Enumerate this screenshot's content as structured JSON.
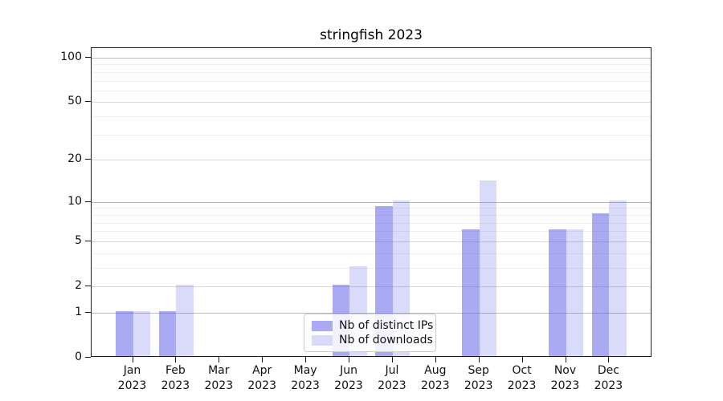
{
  "chart_data": {
    "type": "bar",
    "title": "stringfish 2023",
    "categories": [
      {
        "month": "Jan",
        "year": "2023"
      },
      {
        "month": "Feb",
        "year": "2023"
      },
      {
        "month": "Mar",
        "year": "2023"
      },
      {
        "month": "Apr",
        "year": "2023"
      },
      {
        "month": "May",
        "year": "2023"
      },
      {
        "month": "Jun",
        "year": "2023"
      },
      {
        "month": "Jul",
        "year": "2023"
      },
      {
        "month": "Aug",
        "year": "2023"
      },
      {
        "month": "Sep",
        "year": "2023"
      },
      {
        "month": "Oct",
        "year": "2023"
      },
      {
        "month": "Nov",
        "year": "2023"
      },
      {
        "month": "Dec",
        "year": "2023"
      }
    ],
    "series": [
      {
        "name": "Nb of distinct IPs",
        "color": "rgba(85,85,230,0.50)",
        "values": [
          1,
          1,
          0,
          0,
          0,
          2,
          9,
          0,
          6,
          0,
          6,
          8
        ]
      },
      {
        "name": "Nb of downloads",
        "color": "rgba(85,85,230,0.22)",
        "values": [
          1,
          2,
          0,
          0,
          0,
          3,
          10,
          0,
          14,
          0,
          6,
          10
        ]
      }
    ],
    "y_axis": {
      "scale": "log10(1+x)",
      "tick_values": [
        0,
        1,
        2,
        5,
        10,
        20,
        50,
        100
      ],
      "strong_gridlines": [
        1,
        10,
        100
      ],
      "mid_gridlines": [
        2,
        5,
        20,
        50
      ],
      "minor_gridlines": [
        3,
        4,
        6,
        7,
        8,
        9,
        30,
        40,
        60,
        70,
        80,
        90
      ],
      "ymax": 116,
      "grid": true
    },
    "legend": {
      "position": "lower-center-inside"
    }
  }
}
